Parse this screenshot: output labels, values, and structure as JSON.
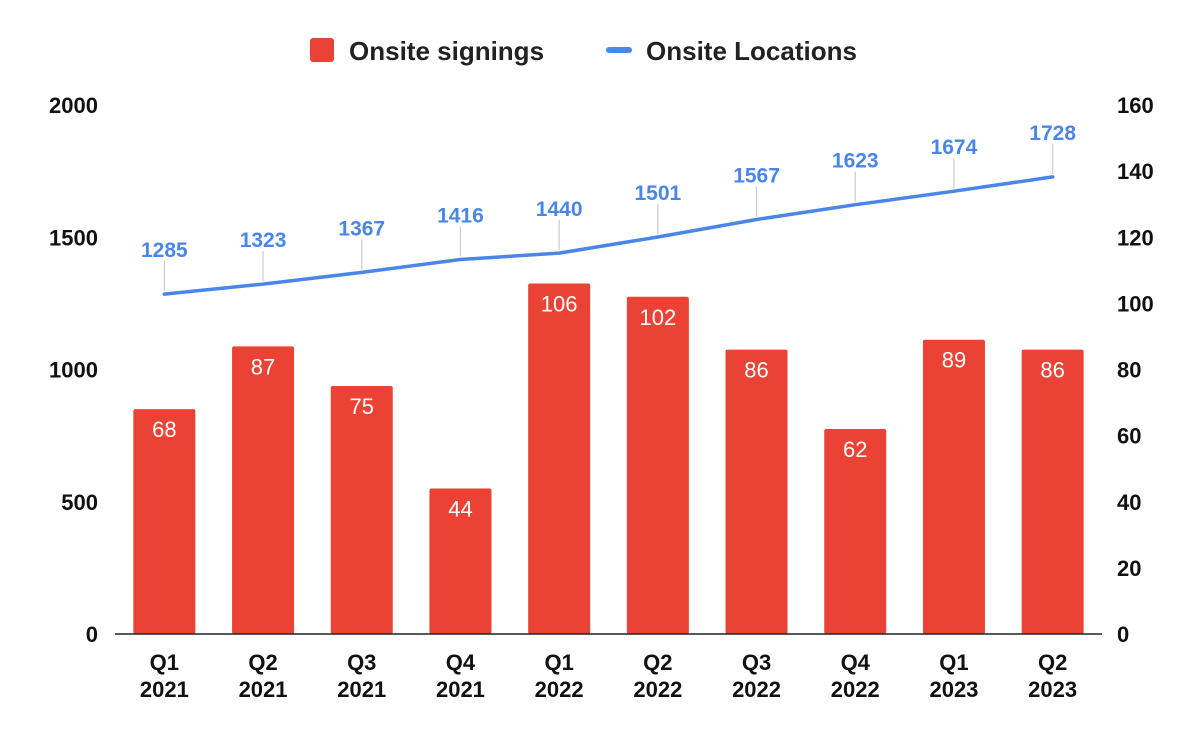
{
  "chart_data": {
    "type": "bar",
    "categories": [
      [
        "Q1",
        "2021"
      ],
      [
        "Q2",
        "2021"
      ],
      [
        "Q3",
        "2021"
      ],
      [
        "Q4",
        "2021"
      ],
      [
        "Q1",
        "2022"
      ],
      [
        "Q2",
        "2022"
      ],
      [
        "Q3",
        "2022"
      ],
      [
        "Q4",
        "2022"
      ],
      [
        "Q1",
        "2023"
      ],
      [
        "Q2",
        "2023"
      ]
    ],
    "series": [
      {
        "name": "Onsite signings",
        "type": "bar",
        "axis": "right",
        "color": "#ea4335",
        "values": [
          68,
          87,
          75,
          44,
          106,
          102,
          86,
          62,
          89,
          86
        ]
      },
      {
        "name": "Onsite Locations",
        "type": "line",
        "axis": "left",
        "color": "#4a86e8",
        "values": [
          1285,
          1323,
          1367,
          1416,
          1440,
          1501,
          1567,
          1623,
          1674,
          1728
        ]
      }
    ],
    "y_left": {
      "range": [
        0,
        2000
      ],
      "ticks": [
        "0",
        "500",
        "1000",
        "1500",
        "2000"
      ]
    },
    "y_right": {
      "range": [
        0,
        160
      ],
      "ticks": [
        "0",
        "20",
        "40",
        "60",
        "80",
        "100",
        "120",
        "140",
        "160"
      ]
    },
    "legend_position": "top-center",
    "grid": false
  }
}
